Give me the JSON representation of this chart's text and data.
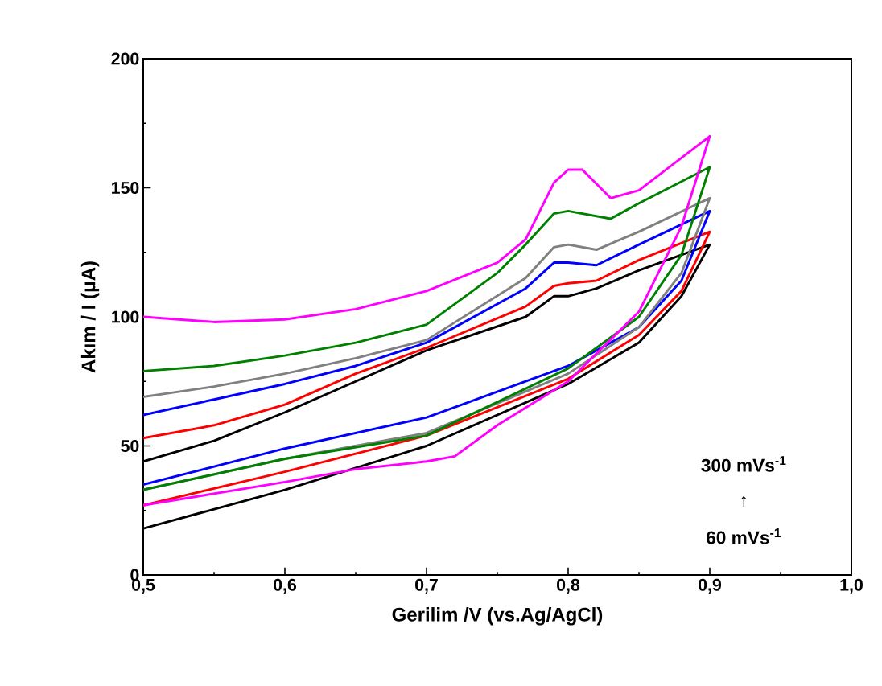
{
  "chart_data": {
    "type": "line",
    "xlabel": "Gerilim /V (vs.Ag/AgCl)",
    "ylabel": "Akım / I (μA)",
    "xlim": [
      0.5,
      1.0
    ],
    "xticks": [
      {
        "value": 0.5,
        "label": "0,5"
      },
      {
        "value": 0.6,
        "label": "0,6"
      },
      {
        "value": 0.7,
        "label": "0,7"
      },
      {
        "value": 0.8,
        "label": "0,8"
      },
      {
        "value": 0.9,
        "label": "0,9"
      },
      {
        "value": 1.0,
        "label": "1,0"
      }
    ],
    "ylim": [
      0,
      200
    ],
    "yticks": [
      0,
      50,
      100,
      150,
      200
    ],
    "grid": false,
    "marker": "none",
    "line_style": "solid",
    "annotations": [
      "300 mVs$^{-1}$",
      "↑",
      "60 mVs$^{-1}$"
    ],
    "series": [
      {
        "color": "#000000",
        "x": [
          0.5,
          0.6,
          0.7,
          0.8,
          0.85,
          0.88,
          0.9,
          0.85,
          0.82,
          0.8,
          0.79,
          0.77,
          0.7,
          0.65,
          0.6,
          0.55,
          0.5
        ],
        "values": [
          18,
          33,
          50,
          74,
          90,
          108,
          128,
          118,
          111,
          108,
          108,
          100,
          87,
          75,
          63,
          52,
          44
        ]
      },
      {
        "color": "#ff0000",
        "x": [
          0.5,
          0.6,
          0.7,
          0.8,
          0.85,
          0.88,
          0.9,
          0.85,
          0.82,
          0.8,
          0.79,
          0.77,
          0.7,
          0.65,
          0.6,
          0.55,
          0.5
        ],
        "values": [
          27,
          40,
          54,
          76,
          93,
          110,
          133,
          122,
          114,
          113,
          112,
          104,
          88,
          78,
          66,
          58,
          53
        ]
      },
      {
        "color": "#0000ff",
        "x": [
          0.5,
          0.6,
          0.7,
          0.8,
          0.85,
          0.88,
          0.9,
          0.85,
          0.82,
          0.8,
          0.79,
          0.77,
          0.7,
          0.65,
          0.6,
          0.55,
          0.5
        ],
        "values": [
          35,
          49,
          61,
          81,
          96,
          114,
          141,
          128,
          120,
          121,
          121,
          111,
          90,
          81,
          74,
          68,
          62
        ]
      },
      {
        "color": "#808080",
        "x": [
          0.5,
          0.6,
          0.7,
          0.8,
          0.85,
          0.88,
          0.9,
          0.85,
          0.82,
          0.8,
          0.79,
          0.77,
          0.7,
          0.65,
          0.6,
          0.55,
          0.5
        ],
        "values": [
          33,
          45,
          55,
          78,
          96,
          117,
          146,
          133,
          126,
          128,
          127,
          115,
          91,
          84,
          78,
          73,
          69
        ]
      },
      {
        "color": "#008000",
        "x": [
          0.5,
          0.6,
          0.7,
          0.8,
          0.85,
          0.88,
          0.9,
          0.85,
          0.83,
          0.8,
          0.79,
          0.77,
          0.75,
          0.7,
          0.65,
          0.6,
          0.55,
          0.5
        ],
        "values": [
          33,
          45,
          54,
          80,
          100,
          124,
          158,
          144,
          138,
          141,
          140,
          128,
          117,
          97,
          90,
          85,
          81,
          79
        ]
      },
      {
        "color": "#ff00ff",
        "x": [
          0.5,
          0.6,
          0.65,
          0.7,
          0.72,
          0.75,
          0.8,
          0.85,
          0.88,
          0.9,
          0.85,
          0.83,
          0.81,
          0.8,
          0.79,
          0.77,
          0.75,
          0.7,
          0.65,
          0.6,
          0.55,
          0.5
        ],
        "values": [
          27,
          36,
          41,
          44,
          46,
          58,
          75,
          102,
          135,
          170,
          149,
          146,
          157,
          157,
          152,
          130,
          121,
          110,
          103,
          99,
          98,
          100
        ]
      }
    ]
  }
}
